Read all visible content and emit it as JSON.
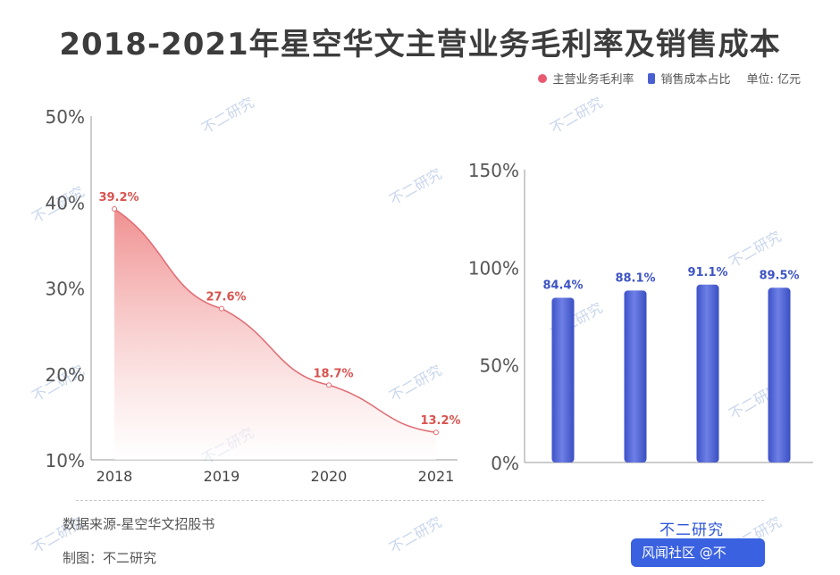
{
  "title": "2018-2021年星空华文主营业务毛利率及销售成本",
  "legend": {
    "series1": "主营业务毛利率",
    "series2": "销售成本占比",
    "unit": "单位: 亿元"
  },
  "footer": {
    "source": "数据来源-星空华文招股书",
    "maker": "制图：不二研究",
    "brand": "不二研究",
    "brand_box": "风闻社区 @不"
  },
  "watermark": "不二研究",
  "colors": {
    "line": "#e06b73",
    "line_label": "#d9534f",
    "bar": "#4a5fd0",
    "bar_label": "#3d54c4"
  },
  "chart_data": [
    {
      "type": "area",
      "series": [
        {
          "name": "主营业务毛利率",
          "values": [
            39.2,
            27.6,
            18.7,
            13.2
          ]
        }
      ],
      "categories": [
        "2018",
        "2019",
        "2020",
        "2021"
      ],
      "data_labels": [
        "39.2%",
        "27.6%",
        "18.7%",
        "13.2%"
      ],
      "yticks": [
        "10%",
        "20%",
        "30%",
        "40%",
        "50%"
      ],
      "ylim": [
        10,
        50
      ],
      "grid": false
    },
    {
      "type": "bar",
      "series": [
        {
          "name": "销售成本占比",
          "values": [
            84.4,
            88.1,
            91.1,
            89.5
          ]
        }
      ],
      "data_labels": [
        "84.4%",
        "88.1%",
        "91.1%",
        "89.5%"
      ],
      "yticks": [
        "0%",
        "50%",
        "100%",
        "150%"
      ],
      "ylim": [
        0,
        150
      ],
      "grid": false
    }
  ]
}
